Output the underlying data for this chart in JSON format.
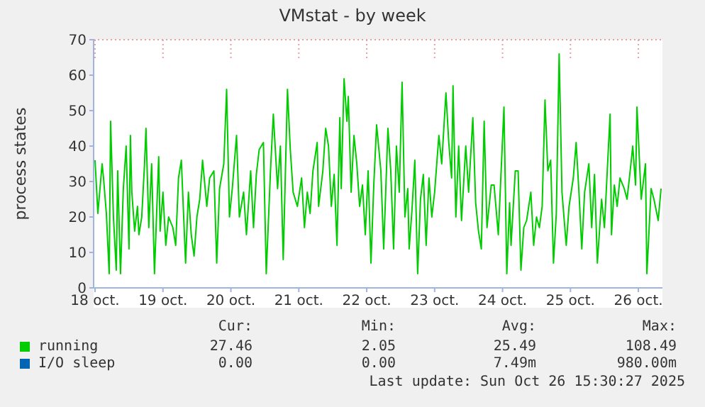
{
  "chart_data": {
    "type": "line",
    "title": "VMstat - by week",
    "ylabel": "process states",
    "xlim": [
      "2025-10-17T23:30",
      "2025-10-26T08:30"
    ],
    "xticks": [
      {
        "value": "2025-10-18",
        "label": "18 oct."
      },
      {
        "value": "2025-10-19",
        "label": "19 oct."
      },
      {
        "value": "2025-10-20",
        "label": "20 oct."
      },
      {
        "value": "2025-10-21",
        "label": "21 oct."
      },
      {
        "value": "2025-10-22",
        "label": "22 oct."
      },
      {
        "value": "2025-10-23",
        "label": "23 oct."
      },
      {
        "value": "2025-10-24",
        "label": "24 oct."
      },
      {
        "value": "2025-10-25",
        "label": "25 oct."
      },
      {
        "value": "2025-10-26",
        "label": "26 oct."
      }
    ],
    "ylim": [
      0,
      70
    ],
    "yticks": [
      0,
      10,
      20,
      30,
      40,
      50,
      60,
      70
    ],
    "grid": true,
    "legend": "bottom left",
    "marker": "none",
    "line_style": "solid",
    "series": [
      {
        "name": "running",
        "color": "#00cc00",
        "x": [
          "2025-10-18T00:00",
          "2025-10-18T01:00",
          "2025-10-18T02:30",
          "2025-10-18T03:00",
          "2025-10-18T04:00",
          "2025-10-18T05:00",
          "2025-10-18T05:30",
          "2025-10-18T06:30",
          "2025-10-18T07:30",
          "2025-10-18T08:00",
          "2025-10-18T09:00",
          "2025-10-18T10:00",
          "2025-10-18T11:00",
          "2025-10-18T12:00",
          "2025-10-18T12:30",
          "2025-10-18T13:00",
          "2025-10-18T14:00",
          "2025-10-18T15:00",
          "2025-10-18T15:30",
          "2025-10-18T16:30",
          "2025-10-18T17:30",
          "2025-10-18T18:00",
          "2025-10-18T19:00",
          "2025-10-18T20:00",
          "2025-10-18T21:00",
          "2025-10-18T22:30",
          "2025-10-18T23:00",
          "2025-10-19T00:00",
          "2025-10-19T01:00",
          "2025-10-19T02:00",
          "2025-10-19T03:30",
          "2025-10-19T04:30",
          "2025-10-19T05:30",
          "2025-10-19T06:30",
          "2025-10-19T08:00",
          "2025-10-19T09:00",
          "2025-10-19T10:00",
          "2025-10-19T11:00",
          "2025-10-19T12:00",
          "2025-10-19T13:00",
          "2025-10-19T14:00",
          "2025-10-19T15:30",
          "2025-10-19T16:30",
          "2025-10-19T18:00",
          "2025-10-19T19:00",
          "2025-10-19T20:00",
          "2025-10-19T21:30",
          "2025-10-19T22:30",
          "2025-10-19T23:30",
          "2025-10-20T00:30",
          "2025-10-20T02:00",
          "2025-10-20T03:00",
          "2025-10-20T04:30",
          "2025-10-20T05:30",
          "2025-10-20T07:00",
          "2025-10-20T08:00",
          "2025-10-20T09:00",
          "2025-10-20T10:00",
          "2025-10-20T11:30",
          "2025-10-20T12:30",
          "2025-10-20T14:00",
          "2025-10-20T15:00",
          "2025-10-20T16:30",
          "2025-10-20T17:30",
          "2025-10-20T18:30",
          "2025-10-20T20:00",
          "2025-10-20T21:00",
          "2025-10-20T22:00",
          "2025-10-20T23:30",
          "2025-10-21T01:00",
          "2025-10-21T02:00",
          "2025-10-21T03:00",
          "2025-10-21T04:00",
          "2025-10-21T05:00",
          "2025-10-21T06:30",
          "2025-10-21T07:00",
          "2025-10-21T08:30",
          "2025-10-21T09:30",
          "2025-10-21T10:30",
          "2025-10-21T11:30",
          "2025-10-21T12:30",
          "2025-10-21T13:30",
          "2025-10-21T14:30",
          "2025-10-21T15:00",
          "2025-10-21T16:00",
          "2025-10-21T17:00",
          "2025-10-21T17:30",
          "2025-10-21T18:30",
          "2025-10-21T19:30",
          "2025-10-21T20:30",
          "2025-10-21T21:30",
          "2025-10-21T22:30",
          "2025-10-21T23:30",
          "2025-10-22T00:30",
          "2025-10-22T01:30",
          "2025-10-22T02:30",
          "2025-10-22T03:30",
          "2025-10-22T05:00",
          "2025-10-22T06:00",
          "2025-10-22T07:30",
          "2025-10-22T08:30",
          "2025-10-22T09:30",
          "2025-10-22T10:30",
          "2025-10-22T11:30",
          "2025-10-22T12:30",
          "2025-10-22T13:30",
          "2025-10-22T14:30",
          "2025-10-22T15:00",
          "2025-10-22T16:00",
          "2025-10-22T17:00",
          "2025-10-22T18:00",
          "2025-10-22T19:00",
          "2025-10-22T20:00",
          "2025-10-22T21:00",
          "2025-10-22T22:00",
          "2025-10-22T23:00",
          "2025-10-23T00:00",
          "2025-10-23T01:30",
          "2025-10-23T02:30",
          "2025-10-23T04:00",
          "2025-10-23T05:00",
          "2025-10-23T06:00",
          "2025-10-23T06:30",
          "2025-10-23T07:30",
          "2025-10-23T08:30",
          "2025-10-23T09:30",
          "2025-10-23T11:00",
          "2025-10-23T12:00",
          "2025-10-23T13:30",
          "2025-10-23T14:30",
          "2025-10-23T15:30",
          "2025-10-23T16:30",
          "2025-10-23T17:30",
          "2025-10-23T18:30",
          "2025-10-23T20:00",
          "2025-10-23T21:00",
          "2025-10-23T22:30",
          "2025-10-24T00:30",
          "2025-10-24T01:30",
          "2025-10-24T02:30",
          "2025-10-24T03:00",
          "2025-10-24T04:30",
          "2025-10-24T05:30",
          "2025-10-24T06:30",
          "2025-10-24T07:30",
          "2025-10-24T08:30",
          "2025-10-24T10:00",
          "2025-10-24T11:00",
          "2025-10-24T12:00",
          "2025-10-24T13:00",
          "2025-10-24T14:00",
          "2025-10-24T15:00",
          "2025-10-24T16:00",
          "2025-10-24T17:00",
          "2025-10-24T18:00",
          "2025-10-24T19:00",
          "2025-10-24T20:00",
          "2025-10-24T21:00",
          "2025-10-24T22:30",
          "2025-10-24T23:30",
          "2025-10-25T01:00",
          "2025-10-25T02:00",
          "2025-10-25T03:00",
          "2025-10-25T04:00",
          "2025-10-25T05:00",
          "2025-10-25T06:30",
          "2025-10-25T07:30",
          "2025-10-25T08:30",
          "2025-10-25T09:30",
          "2025-10-25T11:00",
          "2025-10-25T12:00",
          "2025-10-25T13:00",
          "2025-10-25T14:00",
          "2025-10-25T14:30",
          "2025-10-25T15:30",
          "2025-10-25T16:30",
          "2025-10-25T17:30",
          "2025-10-25T19:00",
          "2025-10-25T20:00",
          "2025-10-25T21:30",
          "2025-10-25T22:00",
          "2025-10-25T23:00",
          "2025-10-25T23:30",
          "2025-10-26T01:00",
          "2025-10-26T02:30",
          "2025-10-26T03:00",
          "2025-10-26T04:30",
          "2025-10-26T05:30",
          "2025-10-26T07:00",
          "2025-10-26T08:00"
        ],
        "values": [
          36,
          21,
          35,
          31,
          21,
          4,
          47,
          20,
          5,
          33,
          4,
          28,
          40,
          11,
          43,
          27,
          16,
          23,
          15,
          20,
          35,
          45,
          17,
          35,
          4,
          37,
          16,
          27,
          12,
          20,
          17,
          12,
          31,
          36,
          7,
          27,
          15,
          9,
          20,
          25,
          36,
          23,
          31,
          33,
          7,
          28,
          35,
          56,
          20,
          28,
          43,
          20,
          27,
          15,
          33,
          17,
          32,
          39,
          41,
          4,
          33,
          49,
          28,
          40,
          8,
          56,
          39,
          27,
          23,
          31,
          17,
          27,
          21,
          33,
          41,
          23,
          33,
          45,
          40,
          23,
          32,
          12,
          48,
          28,
          59,
          47,
          54,
          27,
          43,
          35,
          23,
          29,
          15,
          33,
          7,
          29,
          46,
          33,
          11,
          45,
          33,
          11,
          40,
          27,
          58,
          20,
          28,
          11,
          22,
          36,
          4,
          25,
          32,
          12,
          31,
          20,
          27,
          43,
          35,
          55,
          41,
          31,
          57,
          20,
          40,
          19,
          40,
          27,
          48,
          24,
          16,
          11,
          47,
          17,
          29,
          29,
          15,
          51,
          4,
          24,
          12,
          33,
          33,
          5,
          17,
          19,
          27,
          12,
          20,
          17,
          23,
          53,
          33,
          36,
          7,
          21,
          66,
          27,
          12,
          23,
          31,
          41,
          27,
          11,
          27,
          35,
          17,
          32,
          7,
          25,
          17,
          33,
          49,
          15,
          29,
          23,
          31,
          28,
          25,
          36,
          40,
          29,
          51,
          25,
          35,
          4,
          28,
          25,
          19,
          28
        ]
      },
      {
        "name": "I/O sleep",
        "color": "#0066b3",
        "x": [
          "2025-10-18T00:00",
          "2025-10-26T08:00"
        ],
        "values": [
          0,
          0
        ]
      }
    ],
    "annotations": [
      "Cur:",
      "Min:",
      "Avg:",
      "Max:",
      "27.46",
      "2.05",
      "25.49",
      "108.49",
      "0.00",
      "0.00",
      "7.49m",
      "980.00m",
      "Last update: Sun Oct 26 15:30:27 2025"
    ]
  }
}
